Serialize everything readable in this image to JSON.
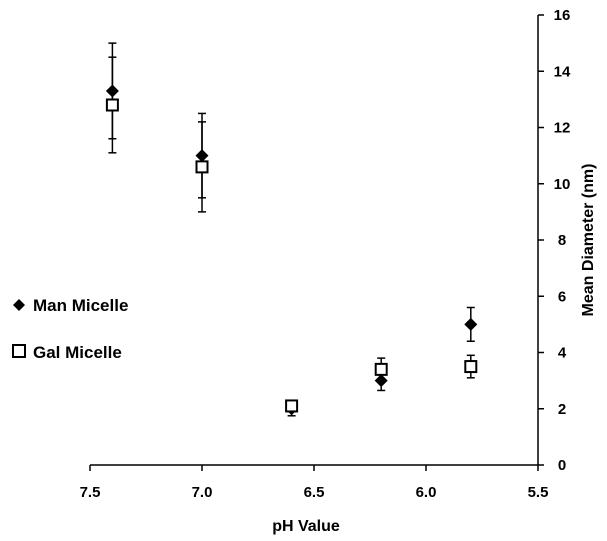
{
  "chart_data": {
    "type": "scatter",
    "xlabel": "pH Value",
    "ylabel": "Mean Diameter (nm)",
    "xlim": [
      7.5,
      5.5
    ],
    "x_reversed": true,
    "ylim": [
      0,
      16
    ],
    "xticks": [
      "7.5",
      "7.0",
      "6.5",
      "6.0",
      "5.5"
    ],
    "yticks": [
      "0",
      "2",
      "4",
      "6",
      "8",
      "10",
      "12",
      "14",
      "16"
    ],
    "y_axis_position": "right",
    "grid": false,
    "legend_position": "left",
    "series": [
      {
        "name": "Man Micelle",
        "marker": "filled-diamond",
        "color": "#000000",
        "x": [
          7.4,
          7.0,
          6.6,
          6.2,
          5.8
        ],
        "y": [
          13.3,
          11.0,
          2.0,
          3.0,
          5.0
        ],
        "err": [
          1.7,
          1.5,
          0.25,
          0.35,
          0.6
        ]
      },
      {
        "name": "Gal Micelle",
        "marker": "open-square",
        "color": "#000000",
        "x": [
          7.4,
          7.0,
          6.6,
          6.2,
          5.8
        ],
        "y": [
          12.8,
          10.6,
          2.1,
          3.4,
          3.5
        ],
        "err": [
          1.7,
          1.6,
          0.2,
          0.4,
          0.4
        ]
      }
    ]
  }
}
